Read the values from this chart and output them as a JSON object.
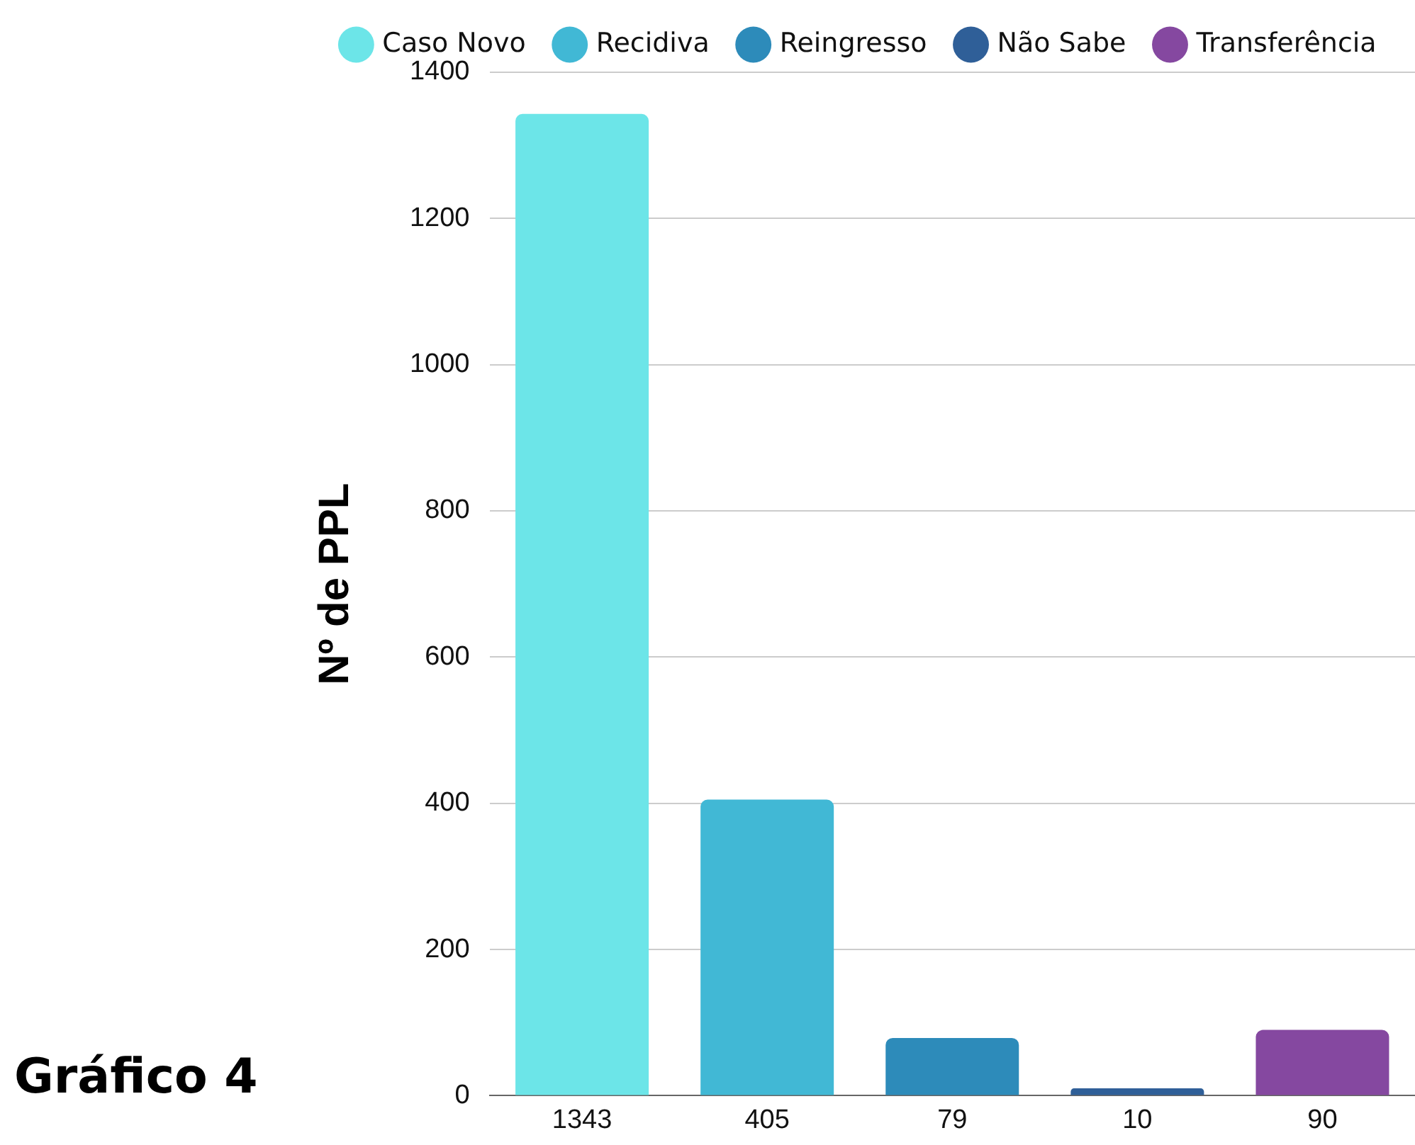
{
  "chart_data": {
    "type": "bar",
    "ylabel": "Nº de PPL",
    "categories": [
      "1343",
      "405",
      "79",
      "10",
      "90"
    ],
    "stacked": true,
    "series": [
      {
        "name": "Caso Novo",
        "color": "#6ce5e8",
        "values": [
          1343,
          null,
          null,
          null,
          null
        ]
      },
      {
        "name": "Recidiva",
        "color": "#41b8d5",
        "values": [
          null,
          405,
          null,
          null,
          null
        ]
      },
      {
        "name": "Reingresso",
        "color": "#2d8bba",
        "values": [
          null,
          null,
          79,
          null,
          null
        ]
      },
      {
        "name": "Não Sabe",
        "color": "#2f5f98",
        "values": [
          null,
          null,
          null,
          10,
          null
        ]
      },
      {
        "name": "Transferência",
        "color": "#8548a0",
        "values": [
          null,
          null,
          null,
          null,
          90
        ]
      }
    ],
    "ylim": [
      0,
      1400
    ],
    "yticks": [
      0,
      200,
      400,
      600,
      800,
      1000,
      1200,
      1400
    ],
    "grid": "y",
    "legend": "top",
    "annotations": [
      "Gráfico 4"
    ]
  }
}
